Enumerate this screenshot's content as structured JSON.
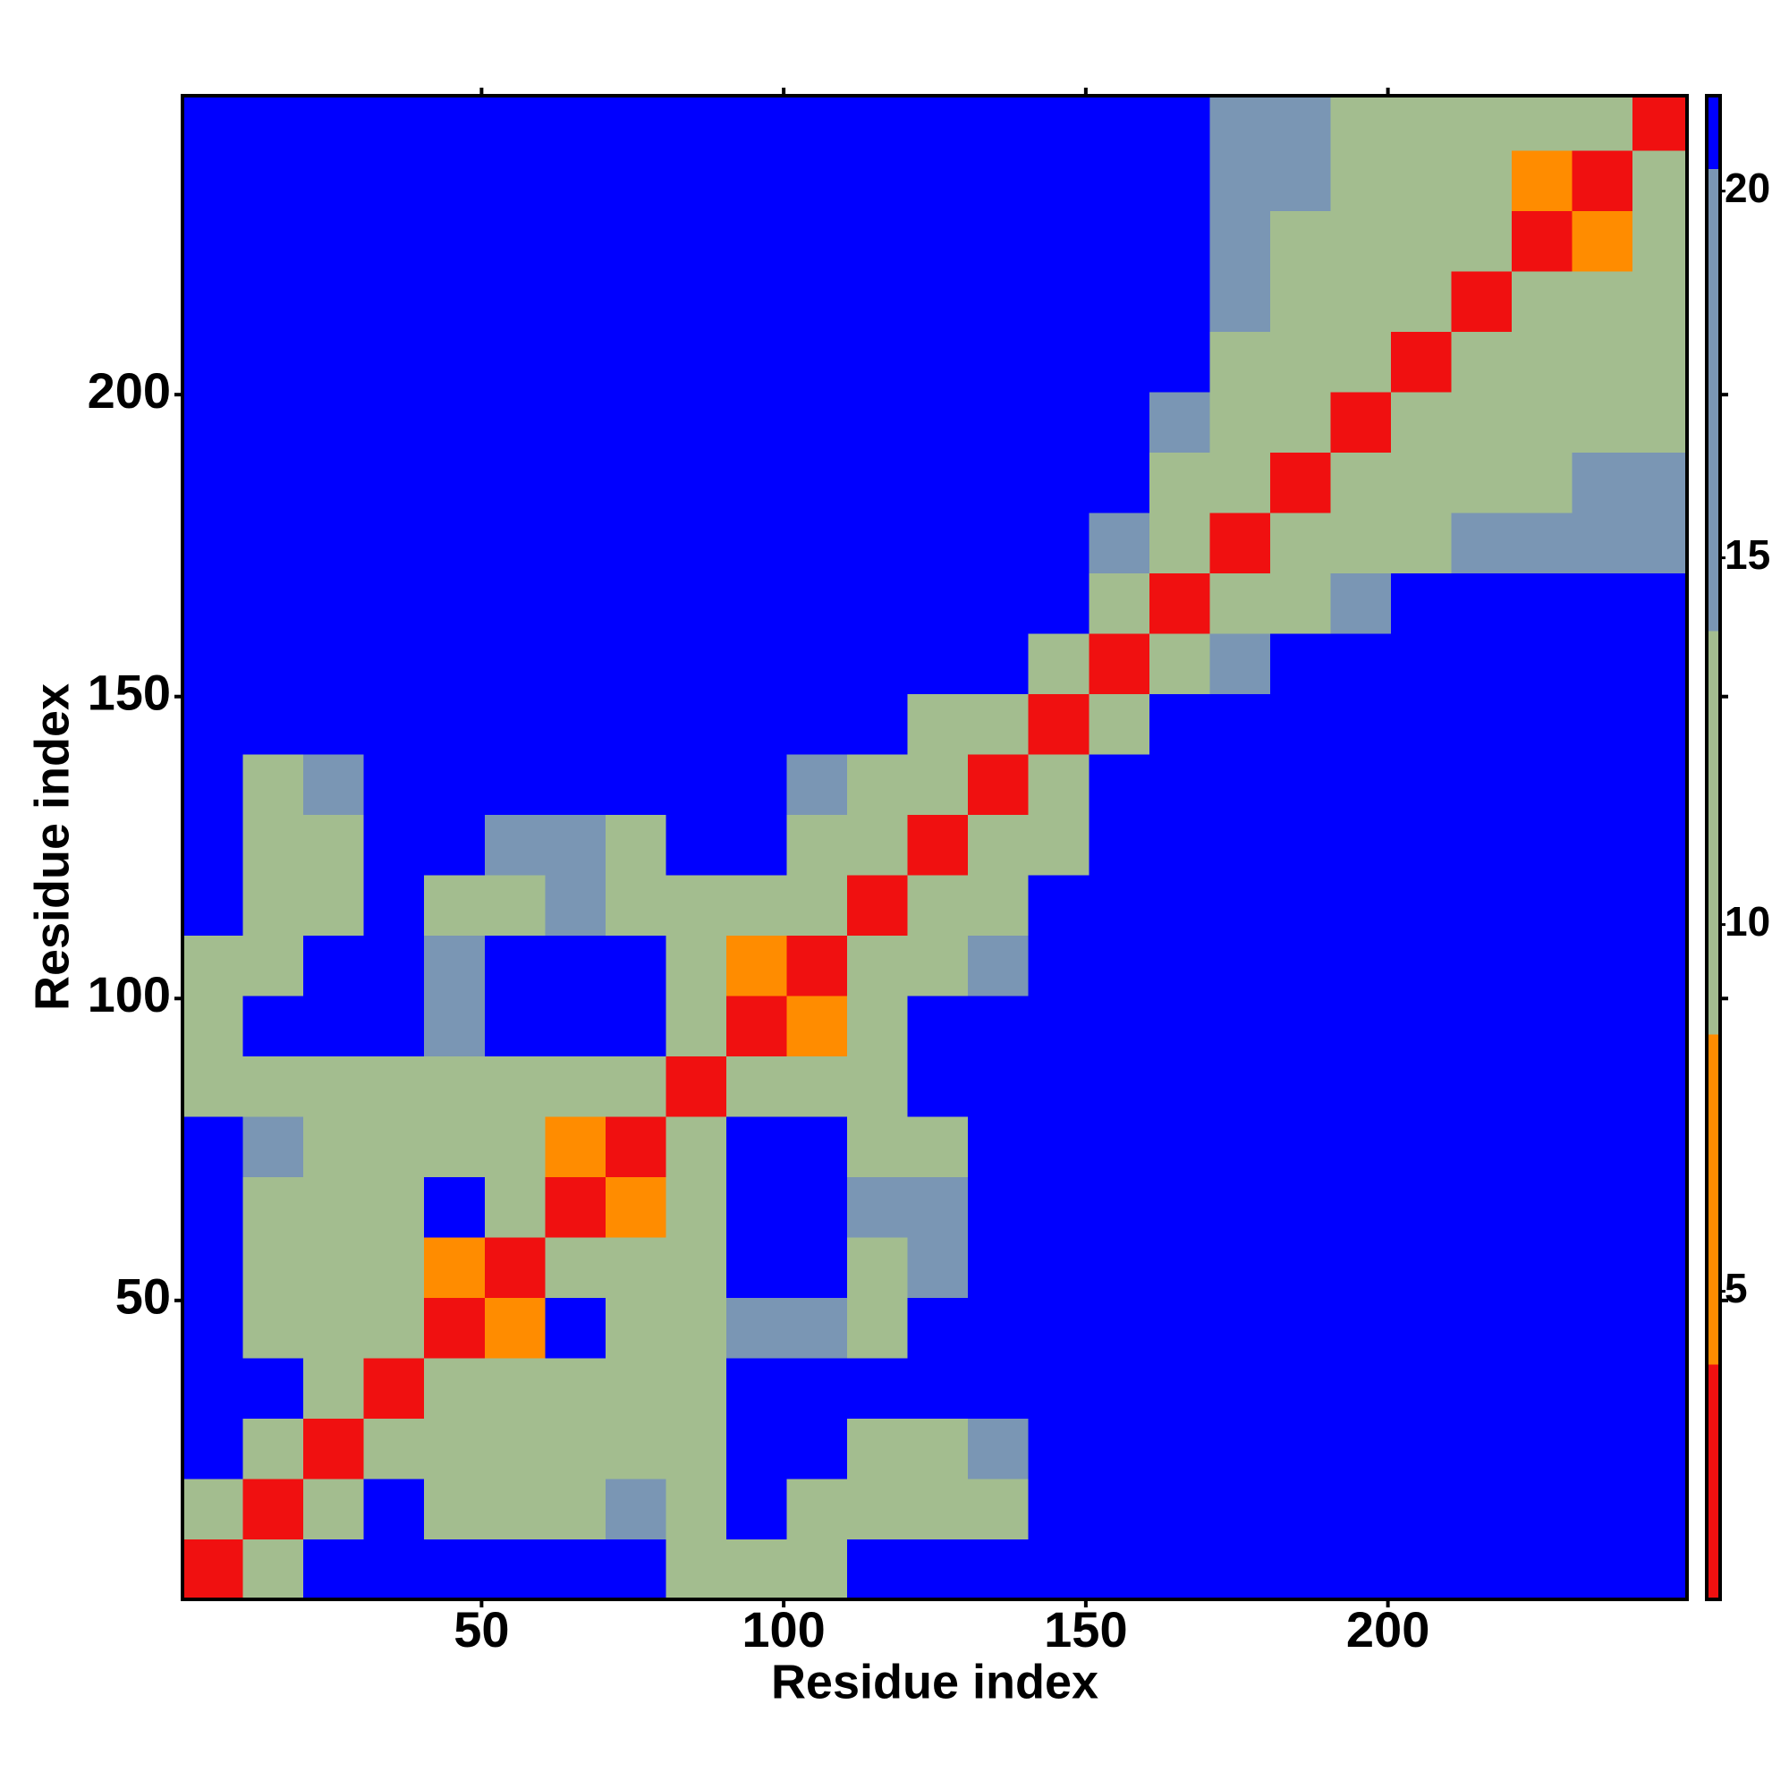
{
  "chart_data": {
    "type": "heatmap",
    "xlabel": "Residue index",
    "ylabel": "Residue index",
    "xlim": [
      0.5,
      249.5
    ],
    "ylim": [
      0.5,
      249.5
    ],
    "xticks": [
      50,
      100,
      150,
      200
    ],
    "yticks": [
      50,
      100,
      150,
      200
    ],
    "xbins": [
      0.5,
      10.5,
      20.5,
      30.5,
      40.5,
      50.5,
      60.5,
      70.5,
      80.5,
      90.5,
      100.5,
      110.5,
      120.5,
      130.5,
      140.5,
      150.5,
      160.5,
      170.5,
      180.5,
      190.5,
      200.5,
      210.5,
      220.5,
      230.5,
      240.5,
      249.5
    ],
    "ybins": [
      0.5,
      10.5,
      20.5,
      30.5,
      40.5,
      50.5,
      60.5,
      70.5,
      80.5,
      90.5,
      100.5,
      110.5,
      120.5,
      130.5,
      140.5,
      150.5,
      160.5,
      170.5,
      180.5,
      190.5,
      200.5,
      210.5,
      220.5,
      230.5,
      240.5,
      249.5
    ],
    "z": [
      [
        3,
        11,
        21,
        21,
        21,
        21,
        21,
        21,
        13,
        13,
        9,
        21,
        21,
        21,
        21,
        21,
        21,
        21,
        21,
        21,
        21,
        21,
        21,
        21,
        21
      ],
      [
        11,
        3,
        11,
        21,
        13,
        13,
        13,
        14,
        13,
        21,
        10,
        9,
        12,
        13,
        21,
        21,
        21,
        21,
        21,
        21,
        21,
        21,
        21,
        21,
        21
      ],
      [
        21,
        11,
        3,
        11,
        12,
        12,
        13,
        12,
        12,
        21,
        21,
        11,
        12,
        14,
        21,
        21,
        21,
        21,
        21,
        21,
        21,
        21,
        21,
        21,
        21
      ],
      [
        21,
        21,
        11,
        3,
        10,
        9,
        12,
        13,
        13,
        21,
        21,
        21,
        21,
        21,
        21,
        21,
        21,
        21,
        21,
        21,
        21,
        21,
        21,
        21,
        21
      ],
      [
        21,
        13,
        12,
        10,
        3,
        8,
        21,
        11,
        12,
        14,
        14,
        13,
        21,
        21,
        21,
        21,
        21,
        21,
        21,
        21,
        21,
        21,
        21,
        21,
        21
      ],
      [
        21,
        13,
        12,
        9,
        8,
        3,
        10,
        9,
        11,
        21,
        21,
        13,
        14,
        21,
        21,
        21,
        21,
        21,
        21,
        21,
        21,
        21,
        21,
        21,
        21
      ],
      [
        21,
        13,
        13,
        12,
        21,
        10,
        3,
        8,
        12,
        21,
        21,
        14,
        14,
        21,
        21,
        21,
        21,
        21,
        21,
        21,
        21,
        21,
        21,
        21,
        21
      ],
      [
        21,
        14,
        12,
        13,
        11,
        9,
        8,
        3,
        11,
        21,
        21,
        10,
        12,
        21,
        21,
        21,
        21,
        21,
        21,
        21,
        21,
        21,
        21,
        21,
        21
      ],
      [
        13,
        13,
        12,
        13,
        12,
        11,
        12,
        11,
        3,
        10,
        12,
        9,
        21,
        21,
        21,
        21,
        21,
        21,
        21,
        21,
        21,
        21,
        21,
        21,
        21
      ],
      [
        13,
        21,
        21,
        21,
        14,
        21,
        21,
        21,
        10,
        3,
        8,
        12,
        21,
        21,
        21,
        21,
        21,
        21,
        21,
        21,
        21,
        21,
        21,
        21,
        21
      ],
      [
        9,
        10,
        21,
        21,
        14,
        21,
        21,
        21,
        12,
        8,
        3,
        10,
        12,
        15,
        21,
        21,
        21,
        21,
        21,
        21,
        21,
        21,
        21,
        21,
        21
      ],
      [
        21,
        9,
        11,
        21,
        13,
        13,
        14,
        10,
        9,
        12,
        10,
        3,
        11,
        13,
        21,
        21,
        21,
        21,
        21,
        21,
        21,
        21,
        21,
        21,
        21
      ],
      [
        21,
        12,
        12,
        21,
        21,
        14,
        14,
        12,
        21,
        21,
        12,
        11,
        3,
        11,
        13,
        21,
        21,
        21,
        21,
        21,
        21,
        21,
        21,
        21,
        21
      ],
      [
        21,
        13,
        14,
        21,
        21,
        21,
        21,
        21,
        21,
        21,
        15,
        13,
        11,
        3,
        12,
        21,
        21,
        21,
        21,
        21,
        21,
        21,
        21,
        21,
        21
      ],
      [
        21,
        21,
        21,
        21,
        21,
        21,
        21,
        21,
        21,
        21,
        21,
        21,
        13,
        12,
        3,
        12,
        21,
        21,
        21,
        21,
        21,
        21,
        21,
        21,
        21
      ],
      [
        21,
        21,
        21,
        21,
        21,
        21,
        21,
        21,
        21,
        21,
        21,
        21,
        21,
        21,
        12,
        3,
        11,
        14,
        21,
        21,
        21,
        21,
        21,
        21,
        21
      ],
      [
        21,
        21,
        21,
        21,
        21,
        21,
        21,
        21,
        21,
        21,
        21,
        21,
        21,
        21,
        21,
        11,
        3,
        11,
        13,
        14,
        21,
        21,
        21,
        21,
        21
      ],
      [
        21,
        21,
        21,
        21,
        21,
        21,
        21,
        21,
        21,
        21,
        21,
        21,
        21,
        21,
        21,
        14,
        11,
        3,
        10,
        12,
        13,
        14,
        14,
        14,
        15
      ],
      [
        21,
        21,
        21,
        21,
        21,
        21,
        21,
        21,
        21,
        21,
        21,
        21,
        21,
        21,
        21,
        21,
        13,
        10,
        3,
        9,
        12,
        13,
        13,
        14,
        14
      ],
      [
        21,
        21,
        21,
        21,
        21,
        21,
        21,
        21,
        21,
        21,
        21,
        21,
        21,
        21,
        21,
        21,
        14,
        12,
        9,
        3,
        9,
        12,
        13,
        10,
        13
      ],
      [
        21,
        21,
        21,
        21,
        21,
        21,
        21,
        21,
        21,
        21,
        21,
        21,
        21,
        21,
        21,
        21,
        21,
        13,
        12,
        9,
        3,
        10,
        12,
        11,
        13
      ],
      [
        21,
        21,
        21,
        21,
        21,
        21,
        21,
        21,
        21,
        21,
        21,
        21,
        21,
        21,
        21,
        21,
        21,
        14,
        13,
        12,
        10,
        3,
        10,
        12,
        12
      ],
      [
        21,
        21,
        21,
        21,
        21,
        21,
        21,
        21,
        21,
        21,
        21,
        21,
        21,
        21,
        21,
        21,
        21,
        14,
        13,
        13,
        12,
        10,
        3,
        8,
        11
      ],
      [
        21,
        21,
        21,
        21,
        21,
        21,
        21,
        21,
        21,
        21,
        21,
        21,
        21,
        21,
        21,
        21,
        21,
        14,
        14,
        10,
        11,
        12,
        8,
        3,
        9
      ],
      [
        21,
        21,
        21,
        21,
        21,
        21,
        21,
        21,
        21,
        21,
        21,
        21,
        21,
        21,
        21,
        21,
        21,
        15,
        14,
        13,
        13,
        12,
        11,
        9,
        3
      ]
    ],
    "clim": [
      0.8,
      21.3
    ],
    "cticks": [
      5,
      10,
      15,
      20
    ],
    "levels": [
      0.8,
      4,
      8.5,
      14,
      20.3,
      21.3
    ],
    "level_colors": [
      "#f01010",
      "#ff8c00",
      "#a3bd8f",
      "#7a96b4",
      "#0000ff"
    ]
  }
}
